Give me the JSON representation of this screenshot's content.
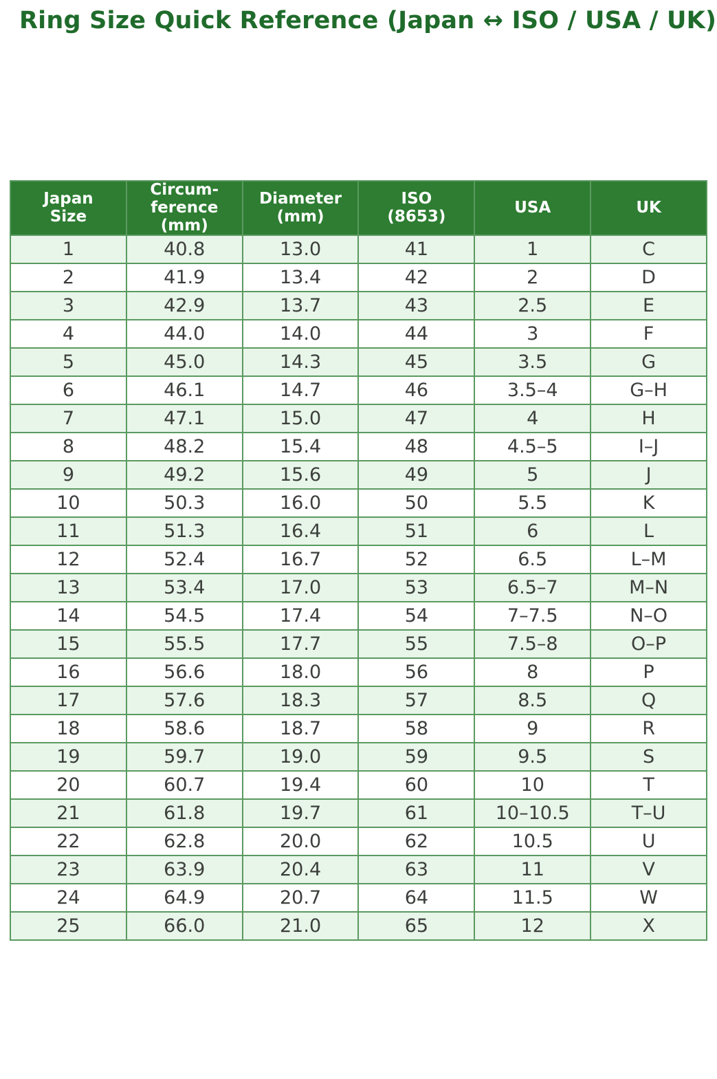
{
  "title": "Ring Size Quick Reference (Japan ↔ ISO / USA / UK)",
  "colors": {
    "title_text": "#1f6b2b",
    "header_background": "#2e7d32",
    "header_text": "#ffffff",
    "row_stripe": "#e8f5e9",
    "row_plain": "#ffffff",
    "grid_border": "#5a9a60",
    "cell_text": "#3c3f3c"
  },
  "chart_data": {
    "type": "table",
    "title": "Ring Size Quick Reference (Japan ↔ ISO / USA / UK)",
    "columns": [
      "Japan Size",
      "Circumference (mm)",
      "Diameter (mm)",
      "ISO (8653)",
      "USA",
      "UK"
    ],
    "header_lines": [
      [
        "Japan",
        "Size"
      ],
      [
        "Circum-",
        "ference",
        "(mm)"
      ],
      [
        "Diameter",
        "(mm)"
      ],
      [
        "ISO",
        "(8653)"
      ],
      [
        "USA"
      ],
      [
        "UK"
      ]
    ],
    "rows": [
      [
        "1",
        "40.8",
        "13.0",
        "41",
        "1",
        "C"
      ],
      [
        "2",
        "41.9",
        "13.4",
        "42",
        "2",
        "D"
      ],
      [
        "3",
        "42.9",
        "13.7",
        "43",
        "2.5",
        "E"
      ],
      [
        "4",
        "44.0",
        "14.0",
        "44",
        "3",
        "F"
      ],
      [
        "5",
        "45.0",
        "14.3",
        "45",
        "3.5",
        "G"
      ],
      [
        "6",
        "46.1",
        "14.7",
        "46",
        "3.5–4",
        "G–H"
      ],
      [
        "7",
        "47.1",
        "15.0",
        "47",
        "4",
        "H"
      ],
      [
        "8",
        "48.2",
        "15.4",
        "48",
        "4.5–5",
        "I–J"
      ],
      [
        "9",
        "49.2",
        "15.6",
        "49",
        "5",
        "J"
      ],
      [
        "10",
        "50.3",
        "16.0",
        "50",
        "5.5",
        "K"
      ],
      [
        "11",
        "51.3",
        "16.4",
        "51",
        "6",
        "L"
      ],
      [
        "12",
        "52.4",
        "16.7",
        "52",
        "6.5",
        "L–M"
      ],
      [
        "13",
        "53.4",
        "17.0",
        "53",
        "6.5–7",
        "M–N"
      ],
      [
        "14",
        "54.5",
        "17.4",
        "54",
        "7–7.5",
        "N–O"
      ],
      [
        "15",
        "55.5",
        "17.7",
        "55",
        "7.5–8",
        "O–P"
      ],
      [
        "16",
        "56.6",
        "18.0",
        "56",
        "8",
        "P"
      ],
      [
        "17",
        "57.6",
        "18.3",
        "57",
        "8.5",
        "Q"
      ],
      [
        "18",
        "58.6",
        "18.7",
        "58",
        "9",
        "R"
      ],
      [
        "19",
        "59.7",
        "19.0",
        "59",
        "9.5",
        "S"
      ],
      [
        "20",
        "60.7",
        "19.4",
        "60",
        "10",
        "T"
      ],
      [
        "21",
        "61.8",
        "19.7",
        "61",
        "10–10.5",
        "T–U"
      ],
      [
        "22",
        "62.8",
        "20.0",
        "62",
        "10.5",
        "U"
      ],
      [
        "23",
        "63.9",
        "20.4",
        "63",
        "11",
        "V"
      ],
      [
        "24",
        "64.9",
        "20.7",
        "64",
        "11.5",
        "W"
      ],
      [
        "25",
        "66.0",
        "21.0",
        "65",
        "12",
        "X"
      ]
    ]
  }
}
